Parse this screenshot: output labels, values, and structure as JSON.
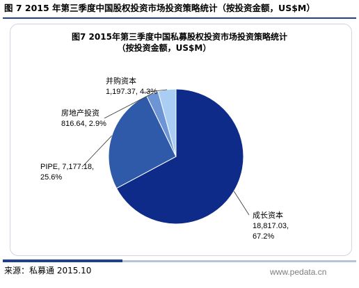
{
  "header": {
    "figure_title": "图 7 2015 年第三季度中国股权投资市场投资策略统计（按投资金额，US$M）"
  },
  "chart_data": {
    "type": "pie",
    "title": "图7 2015年第三季度中国私募股权投资市场投资策略统计",
    "subtitle": "（按投资金额，US$M）",
    "slices": [
      {
        "name": "成长资本",
        "value": 18817.03,
        "value_label": "18,817.03",
        "percent_label": "67.2%",
        "color": "#0f2b8a"
      },
      {
        "name": "PIPE",
        "value": 7177.18,
        "value_label": "7,177.18",
        "percent_label": "25.6%",
        "color": "#2f5aaa"
      },
      {
        "name": "房地产投资",
        "value": 816.64,
        "value_label": "816.64",
        "percent_label": "2.9%",
        "color": "#6d94d4"
      },
      {
        "name": "并购资本",
        "value": 1197.37,
        "value_label": "1,197.37",
        "percent_label": "4.3%",
        "color": "#a9cdf3"
      }
    ]
  },
  "footer": {
    "source": "来源：私募通 2015.10",
    "watermark": "www.pedata.cn"
  }
}
